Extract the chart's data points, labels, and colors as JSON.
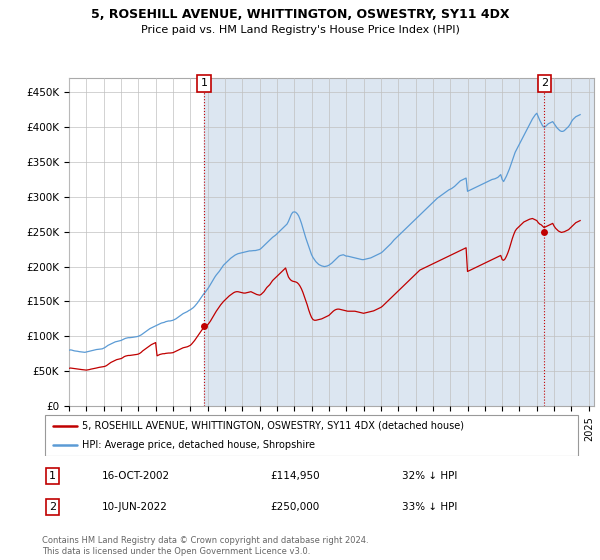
{
  "title": "5, ROSEHILL AVENUE, WHITTINGTON, OSWESTRY, SY11 4DX",
  "subtitle": "Price paid vs. HM Land Registry's House Price Index (HPI)",
  "xlim_start": 1995.0,
  "xlim_end": 2025.3,
  "ylim_min": 0,
  "ylim_max": 470000,
  "yticks": [
    0,
    50000,
    100000,
    150000,
    200000,
    250000,
    300000,
    350000,
    400000,
    450000
  ],
  "ytick_labels": [
    "£0",
    "£50K",
    "£100K",
    "£150K",
    "£200K",
    "£250K",
    "£300K",
    "£350K",
    "£400K",
    "£450K"
  ],
  "xticks": [
    1995,
    1996,
    1997,
    1998,
    1999,
    2000,
    2001,
    2002,
    2003,
    2004,
    2005,
    2006,
    2007,
    2008,
    2009,
    2010,
    2011,
    2012,
    2013,
    2014,
    2015,
    2016,
    2017,
    2018,
    2019,
    2020,
    2021,
    2022,
    2023,
    2024,
    2025
  ],
  "line_hpi_color": "#5b9bd5",
  "line_price_color": "#c00000",
  "marker_color": "#c00000",
  "annotation_box_color": "#c00000",
  "chart_bg_color": "#dce6f1",
  "background_color": "#ffffff",
  "grid_color": "#c0c0c0",
  "legend_label_price": "5, ROSEHILL AVENUE, WHITTINGTON, OSWESTRY, SY11 4DX (detached house)",
  "legend_label_hpi": "HPI: Average price, detached house, Shropshire",
  "sale1_label": "1",
  "sale1_date": "16-OCT-2002",
  "sale1_price": "£114,950",
  "sale1_hpi": "32% ↓ HPI",
  "sale1_x": 2002.79,
  "sale1_y": 114950,
  "sale2_label": "2",
  "sale2_date": "10-JUN-2022",
  "sale2_price": "£250,000",
  "sale2_hpi": "33% ↓ HPI",
  "sale2_x": 2022.44,
  "sale2_y": 250000,
  "footnote": "Contains HM Land Registry data © Crown copyright and database right 2024.\nThis data is licensed under the Open Government Licence v3.0.",
  "hpi_data_x": [
    1995.0,
    1995.083,
    1995.167,
    1995.25,
    1995.333,
    1995.417,
    1995.5,
    1995.583,
    1995.667,
    1995.75,
    1995.833,
    1995.917,
    1996.0,
    1996.083,
    1996.167,
    1996.25,
    1996.333,
    1996.417,
    1996.5,
    1996.583,
    1996.667,
    1996.75,
    1996.833,
    1996.917,
    1997.0,
    1997.083,
    1997.167,
    1997.25,
    1997.333,
    1997.417,
    1997.5,
    1997.583,
    1997.667,
    1997.75,
    1997.833,
    1997.917,
    1998.0,
    1998.083,
    1998.167,
    1998.25,
    1998.333,
    1998.417,
    1998.5,
    1998.583,
    1998.667,
    1998.75,
    1998.833,
    1998.917,
    1999.0,
    1999.083,
    1999.167,
    1999.25,
    1999.333,
    1999.417,
    1999.5,
    1999.583,
    1999.667,
    1999.75,
    1999.833,
    1999.917,
    2000.0,
    2000.083,
    2000.167,
    2000.25,
    2000.333,
    2000.417,
    2000.5,
    2000.583,
    2000.667,
    2000.75,
    2000.833,
    2000.917,
    2001.0,
    2001.083,
    2001.167,
    2001.25,
    2001.333,
    2001.417,
    2001.5,
    2001.583,
    2001.667,
    2001.75,
    2001.833,
    2001.917,
    2002.0,
    2002.083,
    2002.167,
    2002.25,
    2002.333,
    2002.417,
    2002.5,
    2002.583,
    2002.667,
    2002.75,
    2002.833,
    2002.917,
    2003.0,
    2003.083,
    2003.167,
    2003.25,
    2003.333,
    2003.417,
    2003.5,
    2003.583,
    2003.667,
    2003.75,
    2003.833,
    2003.917,
    2004.0,
    2004.083,
    2004.167,
    2004.25,
    2004.333,
    2004.417,
    2004.5,
    2004.583,
    2004.667,
    2004.75,
    2004.833,
    2004.917,
    2005.0,
    2005.083,
    2005.167,
    2005.25,
    2005.333,
    2005.417,
    2005.5,
    2005.583,
    2005.667,
    2005.75,
    2005.833,
    2005.917,
    2006.0,
    2006.083,
    2006.167,
    2006.25,
    2006.333,
    2006.417,
    2006.5,
    2006.583,
    2006.667,
    2006.75,
    2006.833,
    2006.917,
    2007.0,
    2007.083,
    2007.167,
    2007.25,
    2007.333,
    2007.417,
    2007.5,
    2007.583,
    2007.667,
    2007.75,
    2007.833,
    2007.917,
    2008.0,
    2008.083,
    2008.167,
    2008.25,
    2008.333,
    2008.417,
    2008.5,
    2008.583,
    2008.667,
    2008.75,
    2008.833,
    2008.917,
    2009.0,
    2009.083,
    2009.167,
    2009.25,
    2009.333,
    2009.417,
    2009.5,
    2009.583,
    2009.667,
    2009.75,
    2009.833,
    2009.917,
    2010.0,
    2010.083,
    2010.167,
    2010.25,
    2010.333,
    2010.417,
    2010.5,
    2010.583,
    2010.667,
    2010.75,
    2010.833,
    2010.917,
    2011.0,
    2011.083,
    2011.167,
    2011.25,
    2011.333,
    2011.417,
    2011.5,
    2011.583,
    2011.667,
    2011.75,
    2011.833,
    2011.917,
    2012.0,
    2012.083,
    2012.167,
    2012.25,
    2012.333,
    2012.417,
    2012.5,
    2012.583,
    2012.667,
    2012.75,
    2012.833,
    2012.917,
    2013.0,
    2013.083,
    2013.167,
    2013.25,
    2013.333,
    2013.417,
    2013.5,
    2013.583,
    2013.667,
    2013.75,
    2013.833,
    2013.917,
    2014.0,
    2014.083,
    2014.167,
    2014.25,
    2014.333,
    2014.417,
    2014.5,
    2014.583,
    2014.667,
    2014.75,
    2014.833,
    2014.917,
    2015.0,
    2015.083,
    2015.167,
    2015.25,
    2015.333,
    2015.417,
    2015.5,
    2015.583,
    2015.667,
    2015.75,
    2015.833,
    2015.917,
    2016.0,
    2016.083,
    2016.167,
    2016.25,
    2016.333,
    2016.417,
    2016.5,
    2016.583,
    2016.667,
    2016.75,
    2016.833,
    2016.917,
    2017.0,
    2017.083,
    2017.167,
    2017.25,
    2017.333,
    2017.417,
    2017.5,
    2017.583,
    2017.667,
    2017.75,
    2017.833,
    2017.917,
    2018.0,
    2018.083,
    2018.167,
    2018.25,
    2018.333,
    2018.417,
    2018.5,
    2018.583,
    2018.667,
    2018.75,
    2018.833,
    2018.917,
    2019.0,
    2019.083,
    2019.167,
    2019.25,
    2019.333,
    2019.417,
    2019.5,
    2019.583,
    2019.667,
    2019.75,
    2019.833,
    2019.917,
    2020.0,
    2020.083,
    2020.167,
    2020.25,
    2020.333,
    2020.417,
    2020.5,
    2020.583,
    2020.667,
    2020.75,
    2020.833,
    2020.917,
    2021.0,
    2021.083,
    2021.167,
    2021.25,
    2021.333,
    2021.417,
    2021.5,
    2021.583,
    2021.667,
    2021.75,
    2021.833,
    2021.917,
    2022.0,
    2022.083,
    2022.167,
    2022.25,
    2022.333,
    2022.417,
    2022.5,
    2022.583,
    2022.667,
    2022.75,
    2022.833,
    2022.917,
    2023.0,
    2023.083,
    2023.167,
    2023.25,
    2023.333,
    2023.417,
    2023.5,
    2023.583,
    2023.667,
    2023.75,
    2023.833,
    2023.917,
    2024.0,
    2024.083,
    2024.167,
    2024.25,
    2024.333,
    2024.417,
    2024.5
  ],
  "hpi_data_y": [
    80000,
    80500,
    80200,
    79500,
    79000,
    78800,
    78500,
    78000,
    77800,
    77500,
    77200,
    77000,
    77500,
    78000,
    78500,
    79000,
    79500,
    80000,
    80500,
    81000,
    81200,
    81500,
    81800,
    82000,
    83000,
    84000,
    85500,
    87000,
    88000,
    89000,
    90000,
    91000,
    92000,
    92500,
    93000,
    93500,
    94000,
    95000,
    96000,
    97000,
    97500,
    98000,
    98000,
    98200,
    98500,
    98800,
    99000,
    99500,
    100000,
    101000,
    102000,
    103500,
    105000,
    106500,
    108000,
    109500,
    111000,
    112000,
    113000,
    114000,
    115000,
    116000,
    117000,
    118000,
    119000,
    119500,
    120000,
    121000,
    121500,
    122000,
    122000,
    122500,
    123000,
    124000,
    125000,
    126500,
    128000,
    129500,
    131000,
    132500,
    133500,
    134500,
    135500,
    137000,
    138000,
    139500,
    141000,
    143000,
    145500,
    148000,
    151000,
    154000,
    157000,
    160000,
    162500,
    165000,
    168000,
    171000,
    174500,
    178000,
    181500,
    185000,
    188000,
    190500,
    193000,
    196000,
    199000,
    202000,
    204000,
    206000,
    208000,
    210000,
    212000,
    213500,
    215000,
    216500,
    217500,
    218500,
    219000,
    219500,
    220000,
    220500,
    221000,
    221500,
    222000,
    222500,
    222500,
    222800,
    223000,
    223000,
    223500,
    224000,
    224500,
    226000,
    228000,
    230000,
    232000,
    234000,
    236000,
    238000,
    240000,
    242000,
    243500,
    245000,
    247000,
    249000,
    251000,
    253000,
    255000,
    257000,
    259000,
    261000,
    265000,
    270000,
    275000,
    278000,
    278500,
    278000,
    276000,
    273000,
    268000,
    262000,
    255000,
    248000,
    241000,
    235000,
    229000,
    223000,
    217000,
    213000,
    210000,
    207000,
    205000,
    203000,
    202000,
    201000,
    200500,
    200000,
    200500,
    201000,
    202000,
    203500,
    205000,
    207000,
    209000,
    211000,
    213000,
    215000,
    216000,
    216500,
    217000,
    216000,
    215000,
    215000,
    214500,
    214000,
    213500,
    213000,
    212500,
    212000,
    211500,
    211000,
    210500,
    210000,
    210000,
    210500,
    211000,
    211500,
    212000,
    212500,
    213500,
    214500,
    215500,
    216500,
    217500,
    218500,
    219500,
    221000,
    223000,
    225000,
    227000,
    229000,
    231000,
    233000,
    235500,
    238000,
    240000,
    242000,
    244000,
    246000,
    248000,
    250000,
    252000,
    254000,
    256000,
    258000,
    260000,
    262000,
    264000,
    266000,
    268000,
    270000,
    272000,
    274000,
    276000,
    278000,
    280000,
    282000,
    284000,
    286000,
    288000,
    290000,
    292000,
    294000,
    296000,
    298000,
    299500,
    301000,
    302500,
    304000,
    305500,
    307000,
    308500,
    310000,
    311000,
    312000,
    313500,
    315000,
    317000,
    319000,
    321000,
    323000,
    324000,
    325000,
    326000,
    327000,
    308000,
    309000,
    310000,
    311000,
    312000,
    313000,
    314000,
    315000,
    316000,
    317000,
    318000,
    319000,
    320000,
    321000,
    322000,
    323000,
    324000,
    325000,
    325500,
    326000,
    327000,
    328000,
    330000,
    332000,
    325000,
    322000,
    326000,
    330000,
    335000,
    340000,
    346000,
    352000,
    358000,
    364000,
    368000,
    372000,
    376000,
    380000,
    384000,
    388000,
    392000,
    396000,
    400000,
    404000,
    408000,
    412000,
    415000,
    418000,
    420000,
    415000,
    410000,
    406000,
    402000,
    400000,
    401000,
    403000,
    405000,
    406000,
    407000,
    408000,
    405000,
    402000,
    399000,
    397000,
    395000,
    394000,
    394000,
    395000,
    397000,
    399000,
    401000,
    404000,
    408000,
    411000,
    413000,
    415000,
    416000,
    417000,
    418000
  ],
  "price_data_x": [
    1995.0,
    1995.083,
    1995.167,
    1995.25,
    1995.333,
    1995.417,
    1995.5,
    1995.583,
    1995.667,
    1995.75,
    1995.833,
    1995.917,
    1996.0,
    1996.083,
    1996.167,
    1996.25,
    1996.333,
    1996.417,
    1996.5,
    1996.583,
    1996.667,
    1996.75,
    1996.833,
    1996.917,
    1997.0,
    1997.083,
    1997.167,
    1997.25,
    1997.333,
    1997.417,
    1997.5,
    1997.583,
    1997.667,
    1997.75,
    1997.833,
    1997.917,
    1998.0,
    1998.083,
    1998.167,
    1998.25,
    1998.333,
    1998.417,
    1998.5,
    1998.583,
    1998.667,
    1998.75,
    1998.833,
    1998.917,
    1999.0,
    1999.083,
    1999.167,
    1999.25,
    1999.333,
    1999.417,
    1999.5,
    1999.583,
    1999.667,
    1999.75,
    1999.833,
    1999.917,
    2000.0,
    2000.083,
    2000.167,
    2000.25,
    2000.333,
    2000.417,
    2000.5,
    2000.583,
    2000.667,
    2000.75,
    2000.833,
    2000.917,
    2001.0,
    2001.083,
    2001.167,
    2001.25,
    2001.333,
    2001.417,
    2001.5,
    2001.583,
    2001.667,
    2001.75,
    2001.833,
    2001.917,
    2002.0,
    2002.083,
    2002.167,
    2002.25,
    2002.333,
    2002.417,
    2002.5,
    2002.583,
    2002.667,
    2002.75,
    2002.833,
    2002.917,
    2003.0,
    2003.083,
    2003.167,
    2003.25,
    2003.333,
    2003.417,
    2003.5,
    2003.583,
    2003.667,
    2003.75,
    2003.833,
    2003.917,
    2004.0,
    2004.083,
    2004.167,
    2004.25,
    2004.333,
    2004.417,
    2004.5,
    2004.583,
    2004.667,
    2004.75,
    2004.833,
    2004.917,
    2005.0,
    2005.083,
    2005.167,
    2005.25,
    2005.333,
    2005.417,
    2005.5,
    2005.583,
    2005.667,
    2005.75,
    2005.833,
    2005.917,
    2006.0,
    2006.083,
    2006.167,
    2006.25,
    2006.333,
    2006.417,
    2006.5,
    2006.583,
    2006.667,
    2006.75,
    2006.833,
    2006.917,
    2007.0,
    2007.083,
    2007.167,
    2007.25,
    2007.333,
    2007.417,
    2007.5,
    2007.583,
    2007.667,
    2007.75,
    2007.833,
    2007.917,
    2008.0,
    2008.083,
    2008.167,
    2008.25,
    2008.333,
    2008.417,
    2008.5,
    2008.583,
    2008.667,
    2008.75,
    2008.833,
    2008.917,
    2009.0,
    2009.083,
    2009.167,
    2009.25,
    2009.333,
    2009.417,
    2009.5,
    2009.583,
    2009.667,
    2009.75,
    2009.833,
    2009.917,
    2010.0,
    2010.083,
    2010.167,
    2010.25,
    2010.333,
    2010.417,
    2010.5,
    2010.583,
    2010.667,
    2010.75,
    2010.833,
    2010.917,
    2011.0,
    2011.083,
    2011.167,
    2011.25,
    2011.333,
    2011.417,
    2011.5,
    2011.583,
    2011.667,
    2011.75,
    2011.833,
    2011.917,
    2012.0,
    2012.083,
    2012.167,
    2012.25,
    2012.333,
    2012.417,
    2012.5,
    2012.583,
    2012.667,
    2012.75,
    2012.833,
    2012.917,
    2013.0,
    2013.083,
    2013.167,
    2013.25,
    2013.333,
    2013.417,
    2013.5,
    2013.583,
    2013.667,
    2013.75,
    2013.833,
    2013.917,
    2014.0,
    2014.083,
    2014.167,
    2014.25,
    2014.333,
    2014.417,
    2014.5,
    2014.583,
    2014.667,
    2014.75,
    2014.833,
    2014.917,
    2015.0,
    2015.083,
    2015.167,
    2015.25,
    2015.333,
    2015.417,
    2015.5,
    2015.583,
    2015.667,
    2015.75,
    2015.833,
    2015.917,
    2016.0,
    2016.083,
    2016.167,
    2016.25,
    2016.333,
    2016.417,
    2016.5,
    2016.583,
    2016.667,
    2016.75,
    2016.833,
    2016.917,
    2017.0,
    2017.083,
    2017.167,
    2017.25,
    2017.333,
    2017.417,
    2017.5,
    2017.583,
    2017.667,
    2017.75,
    2017.833,
    2017.917,
    2018.0,
    2018.083,
    2018.167,
    2018.25,
    2018.333,
    2018.417,
    2018.5,
    2018.583,
    2018.667,
    2018.75,
    2018.833,
    2018.917,
    2019.0,
    2019.083,
    2019.167,
    2019.25,
    2019.333,
    2019.417,
    2019.5,
    2019.583,
    2019.667,
    2019.75,
    2019.833,
    2019.917,
    2020.0,
    2020.083,
    2020.167,
    2020.25,
    2020.333,
    2020.417,
    2020.5,
    2020.583,
    2020.667,
    2020.75,
    2020.833,
    2020.917,
    2021.0,
    2021.083,
    2021.167,
    2021.25,
    2021.333,
    2021.417,
    2021.5,
    2021.583,
    2021.667,
    2021.75,
    2021.833,
    2021.917,
    2022.0,
    2022.083,
    2022.167,
    2022.25,
    2022.333,
    2022.417,
    2022.5,
    2022.583,
    2022.667,
    2022.75,
    2022.833,
    2022.917,
    2023.0,
    2023.083,
    2023.167,
    2023.25,
    2023.333,
    2023.417,
    2023.5,
    2023.583,
    2023.667,
    2023.75,
    2023.833,
    2023.917,
    2024.0,
    2024.083,
    2024.167,
    2024.25,
    2024.333,
    2024.417,
    2024.5
  ],
  "price_data_y": [
    54000,
    54500,
    54200,
    53800,
    53500,
    53200,
    53000,
    52800,
    52500,
    52200,
    52000,
    51800,
    51500,
    51800,
    52200,
    52800,
    53200,
    53500,
    54000,
    54500,
    55000,
    55500,
    55800,
    56200,
    56500,
    57000,
    58000,
    59500,
    61000,
    62500,
    63500,
    64500,
    65500,
    66500,
    67000,
    67500,
    68000,
    69000,
    70500,
    71500,
    72000,
    72500,
    72500,
    72800,
    73000,
    73500,
    73800,
    74000,
    74500,
    75500,
    77000,
    79000,
    80500,
    82000,
    83500,
    85000,
    86500,
    88000,
    89000,
    90000,
    91000,
    72000,
    73000,
    74000,
    74500,
    75000,
    75000,
    75500,
    75800,
    76000,
    76000,
    76200,
    76500,
    77500,
    78500,
    79500,
    80500,
    81500,
    82500,
    83500,
    84000,
    84500,
    85000,
    86000,
    87000,
    89000,
    91500,
    94000,
    97000,
    100000,
    103000,
    106000,
    109000,
    111500,
    113000,
    115000,
    116500,
    119000,
    122000,
    125500,
    129000,
    132500,
    136000,
    139000,
    142000,
    145000,
    147500,
    150000,
    152000,
    154000,
    156000,
    158000,
    159500,
    161000,
    162500,
    163500,
    164000,
    164000,
    163500,
    163000,
    162500,
    162000,
    162000,
    162500,
    163000,
    163500,
    164000,
    163000,
    162000,
    161000,
    160000,
    159500,
    159000,
    160000,
    162000,
    164000,
    167000,
    170000,
    172000,
    174000,
    177000,
    180000,
    182000,
    184000,
    186000,
    188000,
    190000,
    192000,
    194000,
    196000,
    198000,
    191000,
    185000,
    182000,
    180000,
    179000,
    178500,
    178000,
    177000,
    175000,
    172000,
    168000,
    163000,
    157000,
    151000,
    145000,
    138000,
    132000,
    127000,
    124000,
    123000,
    123000,
    123500,
    124000,
    124500,
    125000,
    126000,
    127000,
    128000,
    129000,
    130000,
    132000,
    134000,
    136000,
    137500,
    138500,
    139000,
    139000,
    138500,
    138000,
    137500,
    137000,
    136500,
    136000,
    136000,
    136000,
    136000,
    136000,
    136000,
    135500,
    135000,
    134500,
    134000,
    133500,
    133000,
    133500,
    134000,
    134500,
    135000,
    135500,
    136000,
    136500,
    137500,
    138500,
    139500,
    140500,
    141500,
    143000,
    145000,
    147000,
    149000,
    151000,
    153000,
    155000,
    157000,
    159000,
    161000,
    163000,
    165000,
    167000,
    169000,
    171000,
    173000,
    175000,
    177000,
    179000,
    181000,
    183000,
    185000,
    187000,
    189000,
    191000,
    193000,
    195000,
    196000,
    197000,
    198000,
    199000,
    200000,
    201000,
    202000,
    203000,
    204000,
    205000,
    206000,
    207000,
    208000,
    209000,
    210000,
    211000,
    212000,
    213000,
    214000,
    215000,
    216000,
    217000,
    218000,
    219000,
    220000,
    221000,
    222000,
    223000,
    224000,
    225000,
    226000,
    227000,
    193000,
    194000,
    195000,
    196000,
    197000,
    198000,
    199000,
    200000,
    201000,
    202000,
    203000,
    204000,
    205000,
    206000,
    207000,
    208000,
    209000,
    210000,
    211000,
    212000,
    213000,
    214000,
    215000,
    216000,
    210000,
    209000,
    211000,
    215000,
    220000,
    226000,
    233000,
    240000,
    246000,
    251000,
    254000,
    256000,
    258000,
    260000,
    262000,
    264000,
    265000,
    266000,
    267000,
    268000,
    268500,
    269000,
    268000,
    267000,
    266000,
    263000,
    261000,
    260000,
    258000,
    256000,
    257000,
    258000,
    259000,
    260000,
    261000,
    262000,
    258000,
    255000,
    253000,
    251000,
    250000,
    249000,
    249500,
    250000,
    251000,
    252000,
    253000,
    255000,
    257000,
    259000,
    261000,
    263000,
    264000,
    265000,
    266000
  ]
}
